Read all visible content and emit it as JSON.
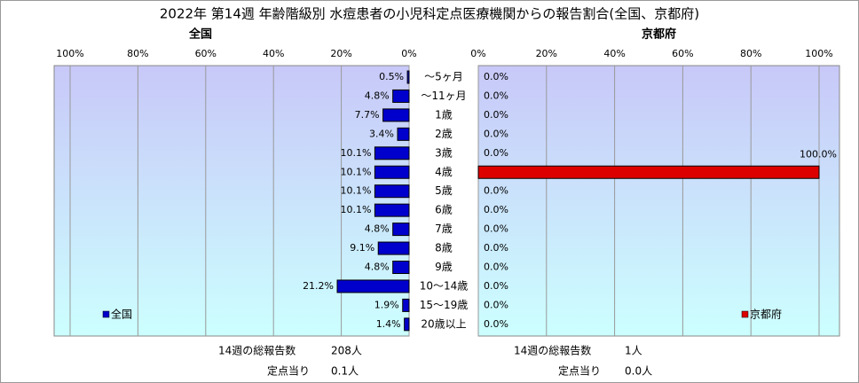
{
  "title": "2022年 第14週 年齢階級別 水痘患者の小児科定点医療機関からの報告割合(全国、京都府)",
  "chart_data": [
    {
      "type": "barh",
      "title": "全国",
      "categories": [
        "～5ヶ月",
        "～11ヶ月",
        "1歳",
        "2歳",
        "3歳",
        "4歳",
        "5歳",
        "6歳",
        "7歳",
        "8歳",
        "9歳",
        "10～14歳",
        "15～19歳",
        "20歳以上"
      ],
      "series": [
        {
          "name": "全国",
          "color": "#0000cc",
          "values": [
            0.5,
            4.8,
            7.7,
            3.4,
            10.1,
            10.1,
            10.1,
            10.1,
            4.8,
            9.1,
            4.8,
            21.2,
            1.9,
            1.4
          ],
          "value_labels": [
            "0.5%",
            "4.8%",
            "7.7%",
            "3.4%",
            "10.1%",
            "10.1%",
            "10.1%",
            "10.1%",
            "4.8%",
            "9.1%",
            "4.8%",
            "21.2%",
            "1.9%",
            "1.4%"
          ]
        }
      ],
      "xlim": [
        100,
        0
      ],
      "xticks": [
        {
          "value": 100,
          "label": "100%"
        },
        {
          "value": 80,
          "label": "80%"
        },
        {
          "value": 60,
          "label": "60%"
        },
        {
          "value": 40,
          "label": "40%"
        },
        {
          "value": 20,
          "label": "20%"
        },
        {
          "value": 0,
          "label": "0%"
        }
      ],
      "grid": true,
      "legend": "lower left",
      "footer": [
        {
          "label": "14週の総報告数",
          "value": "208人"
        },
        {
          "label": "定点当り",
          "value": "0.1人"
        }
      ]
    },
    {
      "type": "barh",
      "title": "京都府",
      "series": [
        {
          "name": "京都府",
          "color": "#dd0000",
          "values": [
            0,
            0,
            0,
            0,
            0,
            100,
            0,
            0,
            0,
            0,
            0,
            0,
            0,
            0
          ],
          "value_labels": [
            "0.0%",
            "0.0%",
            "0.0%",
            "0.0%",
            "0.0%",
            "100.0%",
            "0.0%",
            "0.0%",
            "0.0%",
            "0.0%",
            "0.0%",
            "0.0%",
            "0.0%",
            "0.0%"
          ]
        }
      ],
      "xlim": [
        0,
        100
      ],
      "xticks": [
        {
          "value": 0,
          "label": "0%"
        },
        {
          "value": 20,
          "label": "20%"
        },
        {
          "value": 40,
          "label": "40%"
        },
        {
          "value": 60,
          "label": "60%"
        },
        {
          "value": 80,
          "label": "80%"
        },
        {
          "value": 100,
          "label": "100%"
        }
      ],
      "grid": true,
      "legend": "lower right",
      "footer": [
        {
          "label": "14週の総報告数",
          "value": "1人"
        },
        {
          "label": "定点当り",
          "value": "0.0人"
        }
      ]
    }
  ]
}
